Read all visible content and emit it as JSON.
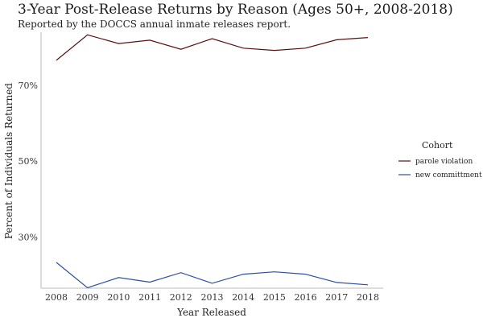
{
  "chart_data": {
    "type": "line",
    "title": "3-Year Post-Release Returns by Reason (Ages 50+, 2008-2018)",
    "subtitle": "Reported by the DOCCS annual inmate releases report.",
    "xlabel": "Year Released",
    "ylabel": "Percent of Individuals Returned",
    "x": [
      2008,
      2009,
      2010,
      2011,
      2012,
      2013,
      2014,
      2015,
      2016,
      2017,
      2018
    ],
    "ylim": [
      16.5,
      84
    ],
    "yticks": [
      30,
      50,
      70
    ],
    "ytick_labels": [
      "30%",
      "50%",
      "70%"
    ],
    "grid": false,
    "legend": {
      "title": "Cohort",
      "placement": "right"
    },
    "series": [
      {
        "name": "parole violation",
        "color": "#5a0f0f",
        "values": [
          76.6,
          83.3,
          81.0,
          81.9,
          79.5,
          82.3,
          79.8,
          79.2,
          79.8,
          82.0,
          82.6
        ]
      },
      {
        "name": "new committment",
        "color": "#2d4f9e",
        "values": [
          23.3,
          16.6,
          19.3,
          18.1,
          20.6,
          17.8,
          20.2,
          20.8,
          20.2,
          18.0,
          17.4
        ]
      }
    ]
  }
}
